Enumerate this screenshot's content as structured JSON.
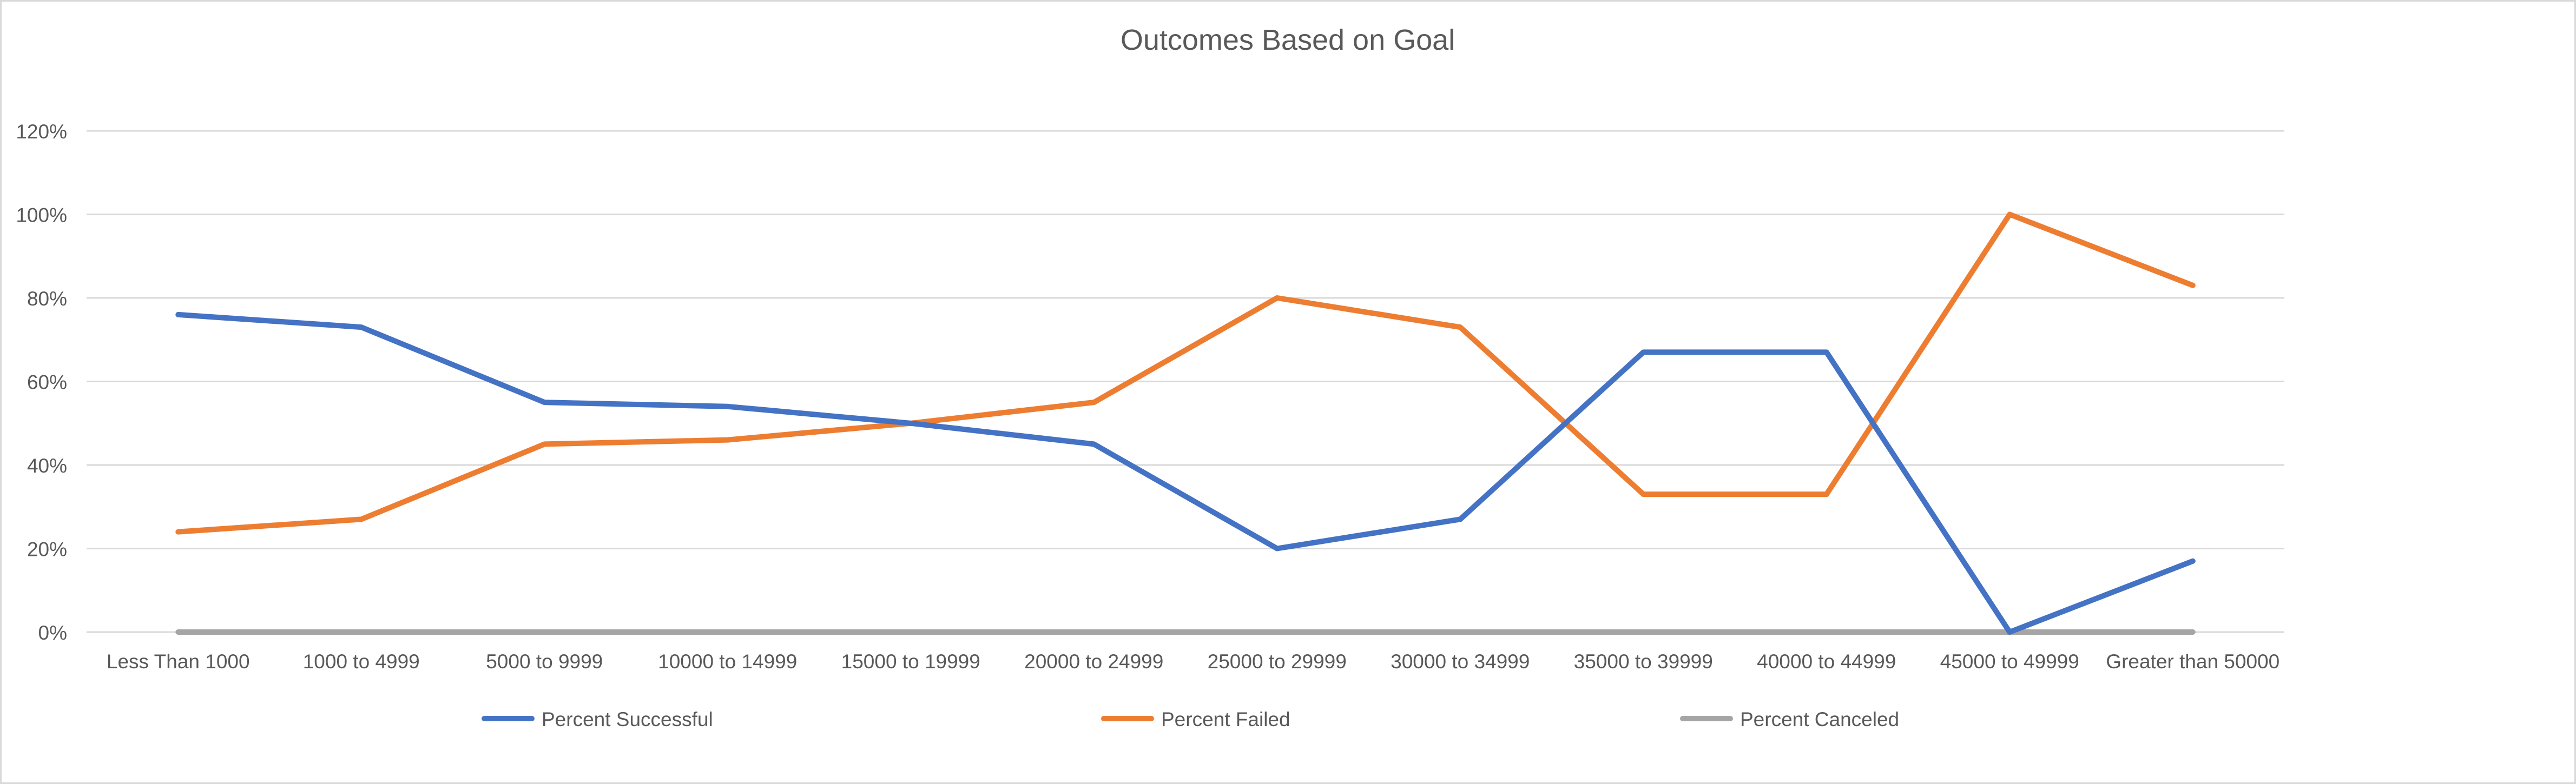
{
  "chart_data": {
    "type": "line",
    "title": "Outcomes Based on Goal",
    "xlabel": "",
    "ylabel": "",
    "categories": [
      "Less Than 1000",
      "1000 to 4999",
      "5000 to 9999",
      "10000 to 14999",
      "15000 to 19999",
      "20000 to 24999",
      "25000 to 29999",
      "30000  to 34999",
      "35000 to 39999",
      "40000 to 44999",
      "45000 to 49999",
      "Greater than 50000"
    ],
    "ylim": [
      0,
      1.2
    ],
    "yticks": [
      0,
      0.2,
      0.4,
      0.6,
      0.8,
      1.0,
      1.2
    ],
    "ytick_labels": [
      "0%",
      "20%",
      "40%",
      "60%",
      "80%",
      "100%",
      "120%"
    ],
    "grid": true,
    "legend_position": "bottom",
    "series": [
      {
        "name": "Percent Successful",
        "color": "#4472c4",
        "values": [
          0.76,
          0.73,
          0.55,
          0.54,
          0.5,
          0.45,
          0.2,
          0.27,
          0.67,
          0.67,
          0.0,
          0.17
        ]
      },
      {
        "name": "Percent Failed",
        "color": "#ed7d31",
        "values": [
          0.24,
          0.27,
          0.45,
          0.46,
          0.5,
          0.55,
          0.8,
          0.73,
          0.33,
          0.33,
          1.0,
          0.83
        ]
      },
      {
        "name": "Percent Canceled",
        "color": "#a5a5a5",
        "values": [
          0,
          0,
          0,
          0,
          0,
          0,
          0,
          0,
          0,
          0,
          0,
          0
        ]
      }
    ]
  }
}
